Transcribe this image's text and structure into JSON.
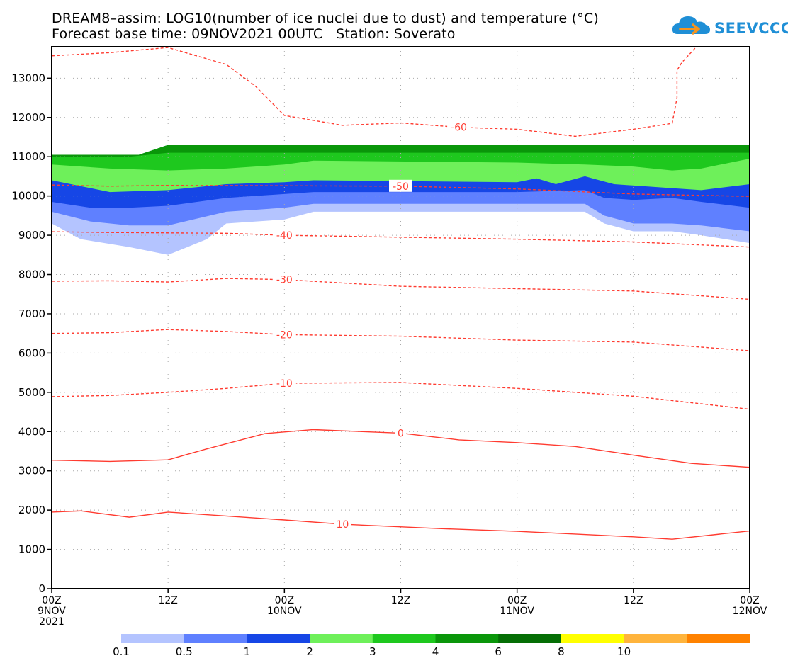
{
  "title": {
    "line1": "DREAM8–assim: LOG10(number of ice nuclei due to dust) and temperature (°C)",
    "line2": "Forecast base time: 09NOV2021 00UTC   Station: Soverato"
  },
  "logo": {
    "text": "SEEVCCC"
  },
  "colors": {
    "contour": "#ff3b30",
    "frame": "#000000",
    "grid": "#aaaaaa"
  },
  "chart_data": {
    "type": "heatmap",
    "x": [
      "00Z 9NOV 2021",
      "12Z",
      "00Z 10NOV",
      "12Z",
      "00Z 11NOV",
      "12Z",
      "00Z 12NOV"
    ],
    "x_ticks": [
      {
        "line1": "00Z",
        "line2": "9NOV",
        "line3": "2021"
      },
      {
        "line1": "12Z",
        "line2": "",
        "line3": ""
      },
      {
        "line1": "00Z",
        "line2": "10NOV",
        "line3": ""
      },
      {
        "line1": "12Z",
        "line2": "",
        "line3": ""
      },
      {
        "line1": "00Z",
        "line2": "11NOV",
        "line3": ""
      },
      {
        "line1": "12Z",
        "line2": "",
        "line3": ""
      },
      {
        "line1": "00Z",
        "line2": "12NOV",
        "line3": ""
      }
    ],
    "x_range_hours": [
      0,
      72
    ],
    "y_ticks": [
      "0",
      "1000",
      "2000",
      "3000",
      "4000",
      "5000",
      "6000",
      "7000",
      "8000",
      "9000",
      "10000",
      "11000",
      "12000",
      "13000"
    ],
    "ylim": [
      0,
      13800
    ],
    "grid": true,
    "colorbar": {
      "labels": [
        "0.1",
        "0.5",
        "1",
        "2",
        "3",
        "4",
        "6",
        "8",
        "10"
      ],
      "colors": [
        "#b4c4ff",
        "#5f80ff",
        "#1646e6",
        "#6ef05a",
        "#1ec81e",
        "#0a960a",
        "#056e05",
        "#ffff00",
        "#ffb43c",
        "#ff8200"
      ]
    },
    "temperature_contours": [
      {
        "label": "10",
        "dashed": false,
        "points": [
          [
            0,
            1950
          ],
          [
            3,
            1980
          ],
          [
            8,
            1820
          ],
          [
            12,
            1950
          ],
          [
            24,
            1750
          ],
          [
            30,
            1640
          ],
          [
            40,
            1530
          ],
          [
            48,
            1460
          ],
          [
            60,
            1320
          ],
          [
            64,
            1260
          ],
          [
            72,
            1470
          ]
        ]
      },
      {
        "label": "0",
        "dashed": false,
        "points": [
          [
            0,
            3270
          ],
          [
            6,
            3240
          ],
          [
            12,
            3280
          ],
          [
            16,
            3560
          ],
          [
            22,
            3950
          ],
          [
            27,
            4050
          ],
          [
            36,
            3960
          ],
          [
            42,
            3790
          ],
          [
            48,
            3720
          ],
          [
            54,
            3620
          ],
          [
            60,
            3400
          ],
          [
            66,
            3190
          ],
          [
            72,
            3090
          ]
        ]
      },
      {
        "label": "-10",
        "dashed": true,
        "points": [
          [
            0,
            4890
          ],
          [
            6,
            4920
          ],
          [
            12,
            5000
          ],
          [
            18,
            5100
          ],
          [
            24,
            5230
          ],
          [
            36,
            5250
          ],
          [
            48,
            5100
          ],
          [
            60,
            4900
          ],
          [
            72,
            4570
          ]
        ]
      },
      {
        "label": "-20",
        "dashed": true,
        "points": [
          [
            0,
            6500
          ],
          [
            6,
            6520
          ],
          [
            12,
            6600
          ],
          [
            18,
            6550
          ],
          [
            24,
            6470
          ],
          [
            36,
            6430
          ],
          [
            48,
            6330
          ],
          [
            60,
            6280
          ],
          [
            72,
            6060
          ]
        ]
      },
      {
        "label": "-30",
        "dashed": true,
        "points": [
          [
            0,
            7830
          ],
          [
            6,
            7840
          ],
          [
            12,
            7810
          ],
          [
            18,
            7900
          ],
          [
            24,
            7870
          ],
          [
            36,
            7700
          ],
          [
            48,
            7640
          ],
          [
            60,
            7580
          ],
          [
            72,
            7370
          ]
        ]
      },
      {
        "label": "-40",
        "dashed": true,
        "points": [
          [
            0,
            9090
          ],
          [
            6,
            9070
          ],
          [
            12,
            9060
          ],
          [
            18,
            9050
          ],
          [
            24,
            9000
          ],
          [
            36,
            8950
          ],
          [
            48,
            8900
          ],
          [
            60,
            8830
          ],
          [
            72,
            8700
          ]
        ]
      },
      {
        "label": "-50",
        "dashed": true,
        "points": [
          [
            0,
            10280
          ],
          [
            6,
            10250
          ],
          [
            12,
            10270
          ],
          [
            24,
            10260
          ],
          [
            36,
            10250
          ],
          [
            48,
            10180
          ],
          [
            60,
            10050
          ],
          [
            72,
            9990
          ]
        ]
      },
      {
        "label": "-60",
        "dashed": true,
        "points": [
          [
            0,
            13570
          ],
          [
            6,
            13650
          ],
          [
            12,
            13780
          ],
          [
            18,
            13350
          ],
          [
            21,
            12800
          ],
          [
            24,
            12050
          ],
          [
            30,
            11800
          ],
          [
            36,
            11860
          ],
          [
            42,
            11750
          ],
          [
            48,
            11700
          ],
          [
            54,
            11520
          ],
          [
            60,
            11700
          ],
          [
            64,
            11850
          ],
          [
            64.5,
            12500
          ],
          [
            64.5,
            13200
          ],
          [
            65,
            13400
          ],
          [
            66.5,
            13800
          ]
        ]
      }
    ],
    "dust_layers": [
      {
        "level": "0.1",
        "points": [
          [
            0,
            9300
          ],
          [
            3,
            8900
          ],
          [
            8,
            8700
          ],
          [
            12,
            8500
          ],
          [
            16,
            8900
          ],
          [
            18,
            9300
          ],
          [
            24,
            9400
          ],
          [
            27,
            9600
          ],
          [
            48,
            9600
          ],
          [
            55,
            9600
          ],
          [
            57,
            9300
          ],
          [
            60,
            9100
          ],
          [
            64,
            9100
          ],
          [
            67,
            9000
          ],
          [
            72,
            8800
          ]
        ]
      },
      {
        "level": "0.5",
        "points": [
          [
            0,
            9600
          ],
          [
            4,
            9350
          ],
          [
            8,
            9250
          ],
          [
            12,
            9250
          ],
          [
            18,
            9600
          ],
          [
            24,
            9700
          ],
          [
            27,
            9800
          ],
          [
            48,
            9800
          ],
          [
            55,
            9800
          ],
          [
            57,
            9500
          ],
          [
            60,
            9300
          ],
          [
            64,
            9300
          ],
          [
            67,
            9250
          ],
          [
            72,
            9100
          ]
        ]
      },
      {
        "level": "1",
        "points": [
          [
            0,
            9850
          ],
          [
            4,
            9700
          ],
          [
            8,
            9700
          ],
          [
            12,
            9750
          ],
          [
            18,
            9950
          ],
          [
            24,
            10050
          ],
          [
            27,
            10100
          ],
          [
            48,
            10100
          ],
          [
            55,
            10150
          ],
          [
            57,
            9950
          ],
          [
            60,
            9900
          ],
          [
            64,
            9950
          ],
          [
            67,
            9850
          ],
          [
            72,
            9700
          ]
        ]
      },
      {
        "level": "2",
        "points": [
          [
            0,
            10400
          ],
          [
            6,
            10100
          ],
          [
            12,
            10150
          ],
          [
            18,
            10300
          ],
          [
            24,
            10350
          ],
          [
            27,
            10400
          ],
          [
            48,
            10350
          ],
          [
            50,
            10450
          ],
          [
            52,
            10300
          ],
          [
            55,
            10500
          ],
          [
            58,
            10300
          ],
          [
            64,
            10200
          ],
          [
            67,
            10150
          ],
          [
            72,
            10300
          ]
        ]
      },
      {
        "level": "3",
        "points": [
          [
            0,
            10800
          ],
          [
            6,
            10700
          ],
          [
            12,
            10650
          ],
          [
            18,
            10700
          ],
          [
            24,
            10800
          ],
          [
            27,
            10900
          ],
          [
            48,
            10850
          ],
          [
            55,
            10800
          ],
          [
            60,
            10750
          ],
          [
            64,
            10650
          ],
          [
            67,
            10700
          ],
          [
            72,
            10950
          ]
        ]
      },
      {
        "level": "4",
        "points": [
          [
            0,
            11000
          ],
          [
            8,
            11000
          ],
          [
            12,
            11100
          ],
          [
            72,
            11100
          ]
        ]
      }
    ],
    "dust_top": [
      [
        0,
        11050
      ],
      [
        9,
        11050
      ],
      [
        12,
        11300
      ],
      [
        72,
        11300
      ]
    ]
  }
}
